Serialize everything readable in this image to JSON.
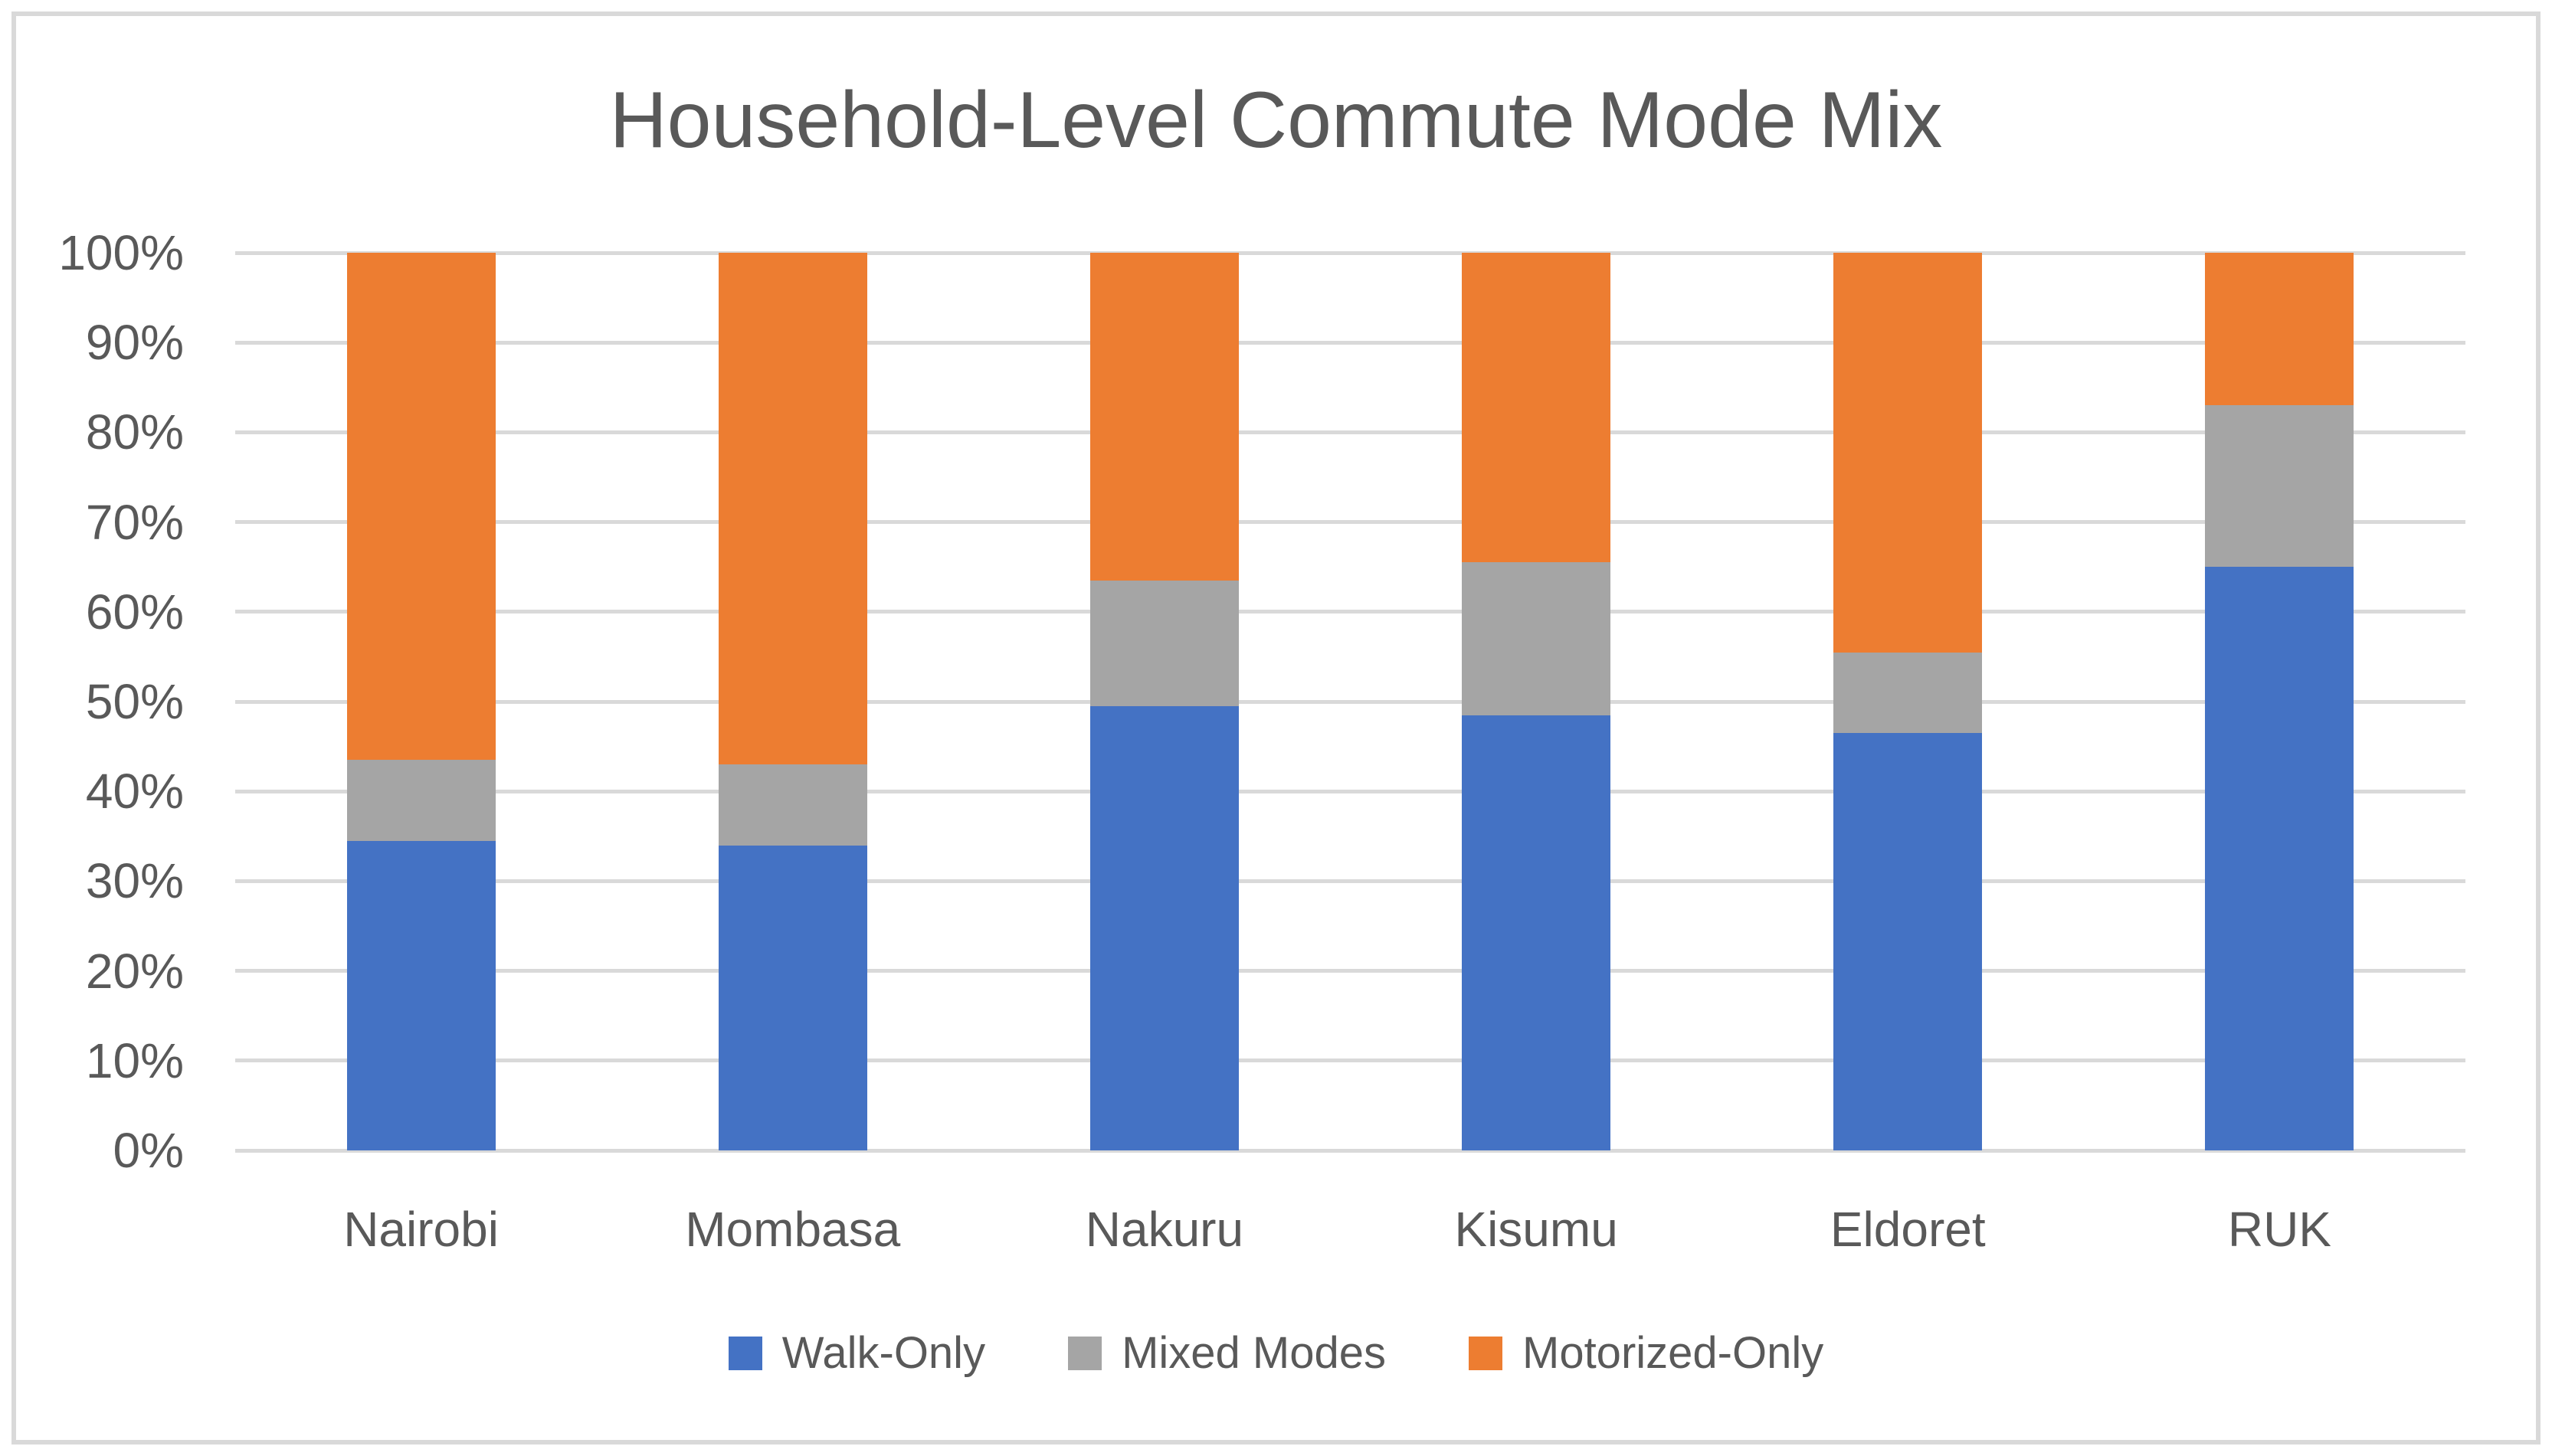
{
  "title": "Household-Level Commute Mode Mix",
  "styles": {
    "background": "#FFFFFF",
    "text_color": "#595959",
    "gridline_color": "#D9D9D9",
    "border_color": "#D9D9D9"
  },
  "chart_data": {
    "type": "bar",
    "stacked": true,
    "stacking": "percent",
    "title": "Household-Level Commute Mode Mix",
    "xlabel": "",
    "ylabel": "",
    "categories": [
      "Nairobi",
      "Mombasa",
      "Nakuru",
      "Kisumu",
      "Eldoret",
      "RUK"
    ],
    "series": [
      {
        "name": "Walk-Only",
        "color": "#4472C4",
        "values": [
          34.5,
          34.0,
          49.5,
          48.5,
          46.5,
          65.0
        ]
      },
      {
        "name": "Mixed Modes",
        "color": "#A5A5A5",
        "values": [
          9.0,
          9.0,
          14.0,
          17.0,
          9.0,
          18.0
        ]
      },
      {
        "name": "Motorized-Only",
        "color": "#ED7D31",
        "values": [
          56.5,
          57.0,
          36.5,
          34.5,
          44.5,
          17.0
        ]
      }
    ],
    "ylim": [
      0,
      100
    ],
    "y_ticks": [
      "0%",
      "10%",
      "20%",
      "30%",
      "40%",
      "50%",
      "60%",
      "70%",
      "80%",
      "90%",
      "100%"
    ],
    "grid": true,
    "legend_position": "bottom"
  }
}
